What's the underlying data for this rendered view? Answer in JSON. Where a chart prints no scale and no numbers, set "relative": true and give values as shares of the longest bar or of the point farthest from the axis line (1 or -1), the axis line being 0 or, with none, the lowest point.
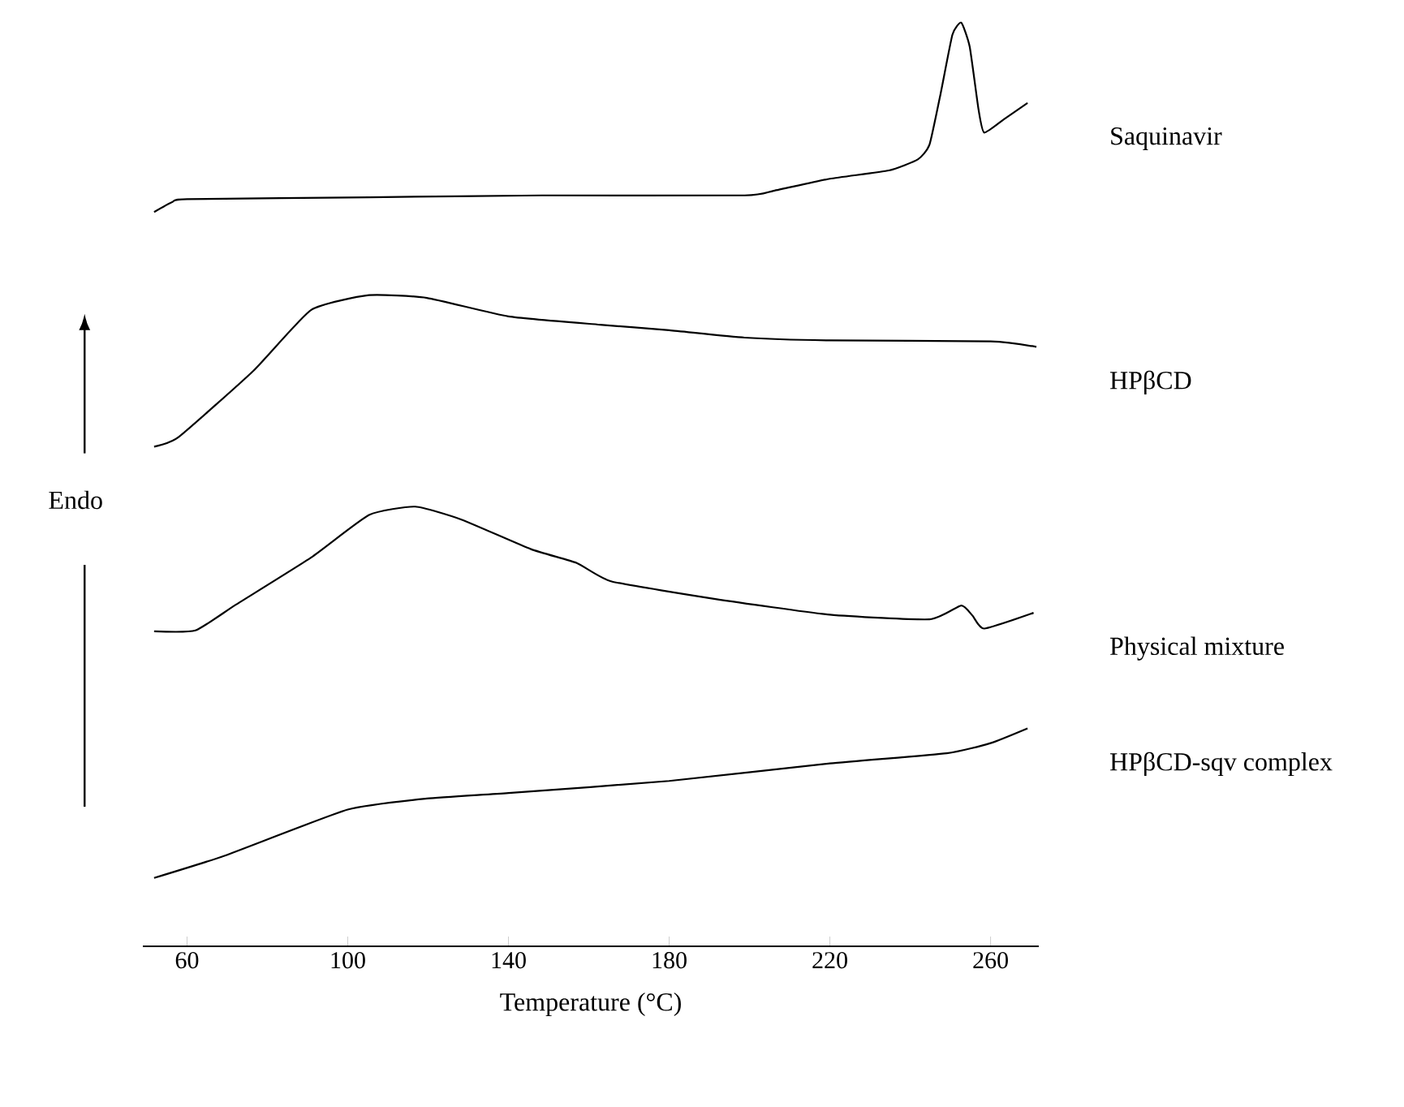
{
  "chart_data": {
    "type": "line",
    "relative": true,
    "xlabel": "Temperature (°C)",
    "xlim": [
      49,
      272
    ],
    "xticks": [
      60,
      100,
      140,
      180,
      220,
      260
    ],
    "marker": "none",
    "line_style": "solid",
    "grid": false,
    "tick_labels": "x",
    "annotations": [
      "Endo"
    ],
    "series": [
      {
        "name": "Saquinavir",
        "color": "#000000",
        "x": [
          51.8,
          56.4,
          60,
          105.3,
          148.4,
          198.8,
          206,
          220,
          234.7,
          241.9,
          244.8,
          247.6,
          250.5,
          252.7,
          254.8,
          257,
          258.4,
          263.5,
          269.2
        ],
        "values": [
          0.795,
          0.806,
          0.809,
          0.811,
          0.813,
          0.813,
          0.818,
          0.831,
          0.84,
          0.852,
          0.868,
          0.924,
          0.987,
          1,
          0.974,
          0.906,
          0.881,
          0.896,
          0.913
        ]
      },
      {
        "name": "HPβCD",
        "color": "#000000",
        "x": [
          51.8,
          57.8,
          76.5,
          90.9,
          105.3,
          119.7,
          140,
          162.8,
          180,
          198.8,
          220,
          260,
          271.4
        ],
        "values": [
          0.541,
          0.551,
          0.623,
          0.689,
          0.705,
          0.702,
          0.682,
          0.673,
          0.667,
          0.659,
          0.656,
          0.655,
          0.649
        ]
      },
      {
        "name": "Physical mixture",
        "color": "#000000",
        "x": [
          51.8,
          62.1,
          72.2,
          90.9,
          105.3,
          116.8,
          128.3,
          145.6,
          157,
          165.7,
          191.5,
          220,
          244.8,
          252.7,
          255.5,
          258.4,
          270.7
        ],
        "values": [
          0.341,
          0.342,
          0.37,
          0.421,
          0.467,
          0.476,
          0.462,
          0.43,
          0.415,
          0.395,
          0.376,
          0.359,
          0.354,
          0.369,
          0.358,
          0.344,
          0.361
        ]
      },
      {
        "name": "HPβCD-sqv complex",
        "color": "#000000",
        "x": [
          51.8,
          69.3,
          100,
          119.7,
          140,
          180,
          220,
          249.1,
          260,
          269.2
        ],
        "values": [
          0.074,
          0.098,
          0.148,
          0.16,
          0.166,
          0.179,
          0.198,
          0.209,
          0.22,
          0.236
        ]
      }
    ]
  }
}
